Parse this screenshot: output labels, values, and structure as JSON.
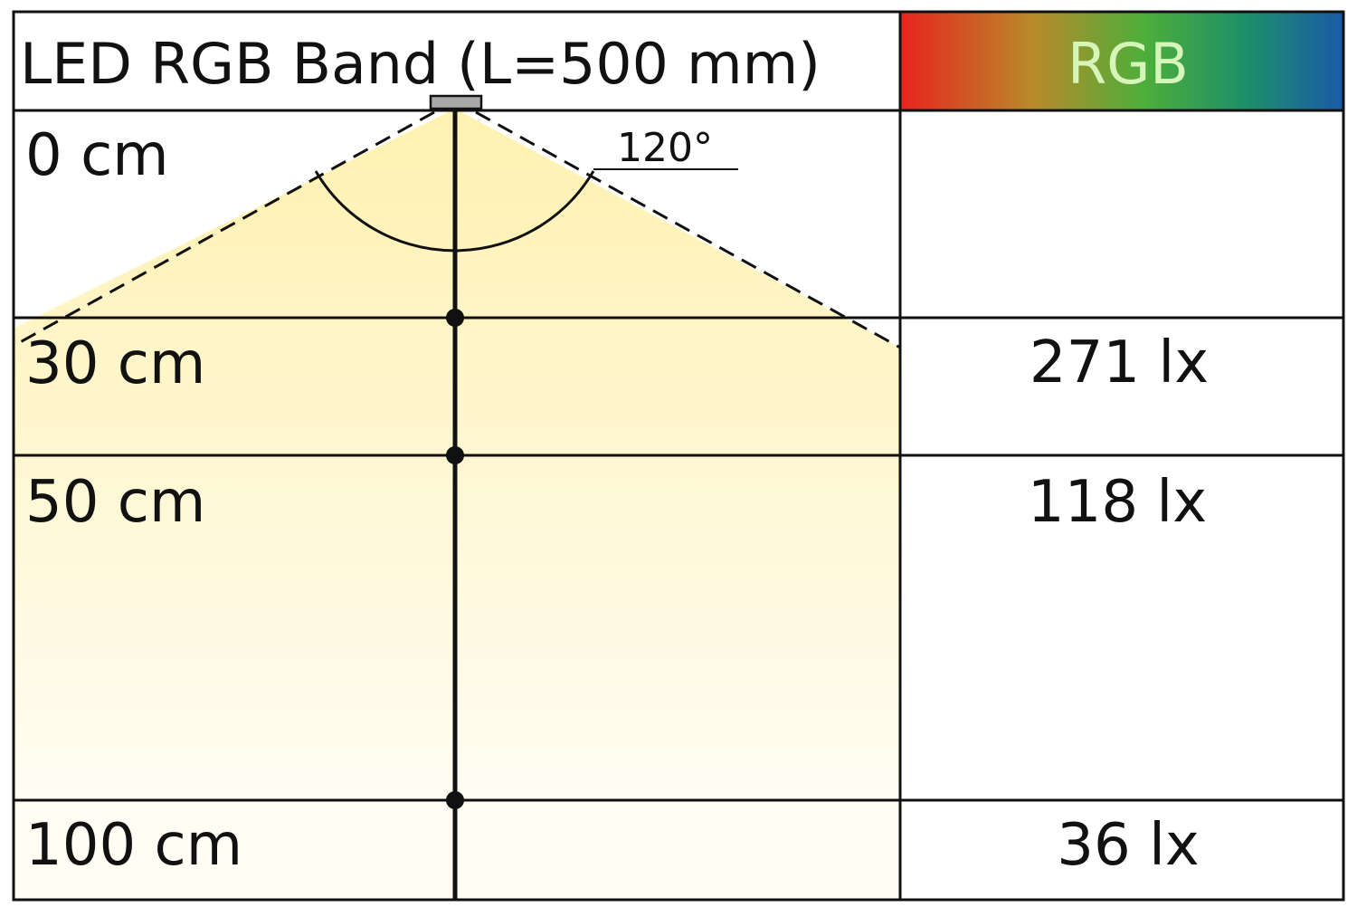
{
  "title": "LED RGB Band (L=500 mm)",
  "color_header": {
    "label": "RGB",
    "gradient": [
      "#e8241e",
      "#b88a2a",
      "#4dae3a",
      "#1d8f6a",
      "#1a5aa8"
    ],
    "text_color": "#d6f5b8"
  },
  "beam": {
    "angle_label": "120°",
    "fill_top": "#fff1b0",
    "fill_bottom": "#fffdf4"
  },
  "rows": [
    {
      "distance": "0 cm",
      "lux": ""
    },
    {
      "distance": "30 cm",
      "lux": "271 lx"
    },
    {
      "distance": "50 cm",
      "lux": "118 lx"
    },
    {
      "distance": "100 cm",
      "lux": "36 lx"
    }
  ]
}
